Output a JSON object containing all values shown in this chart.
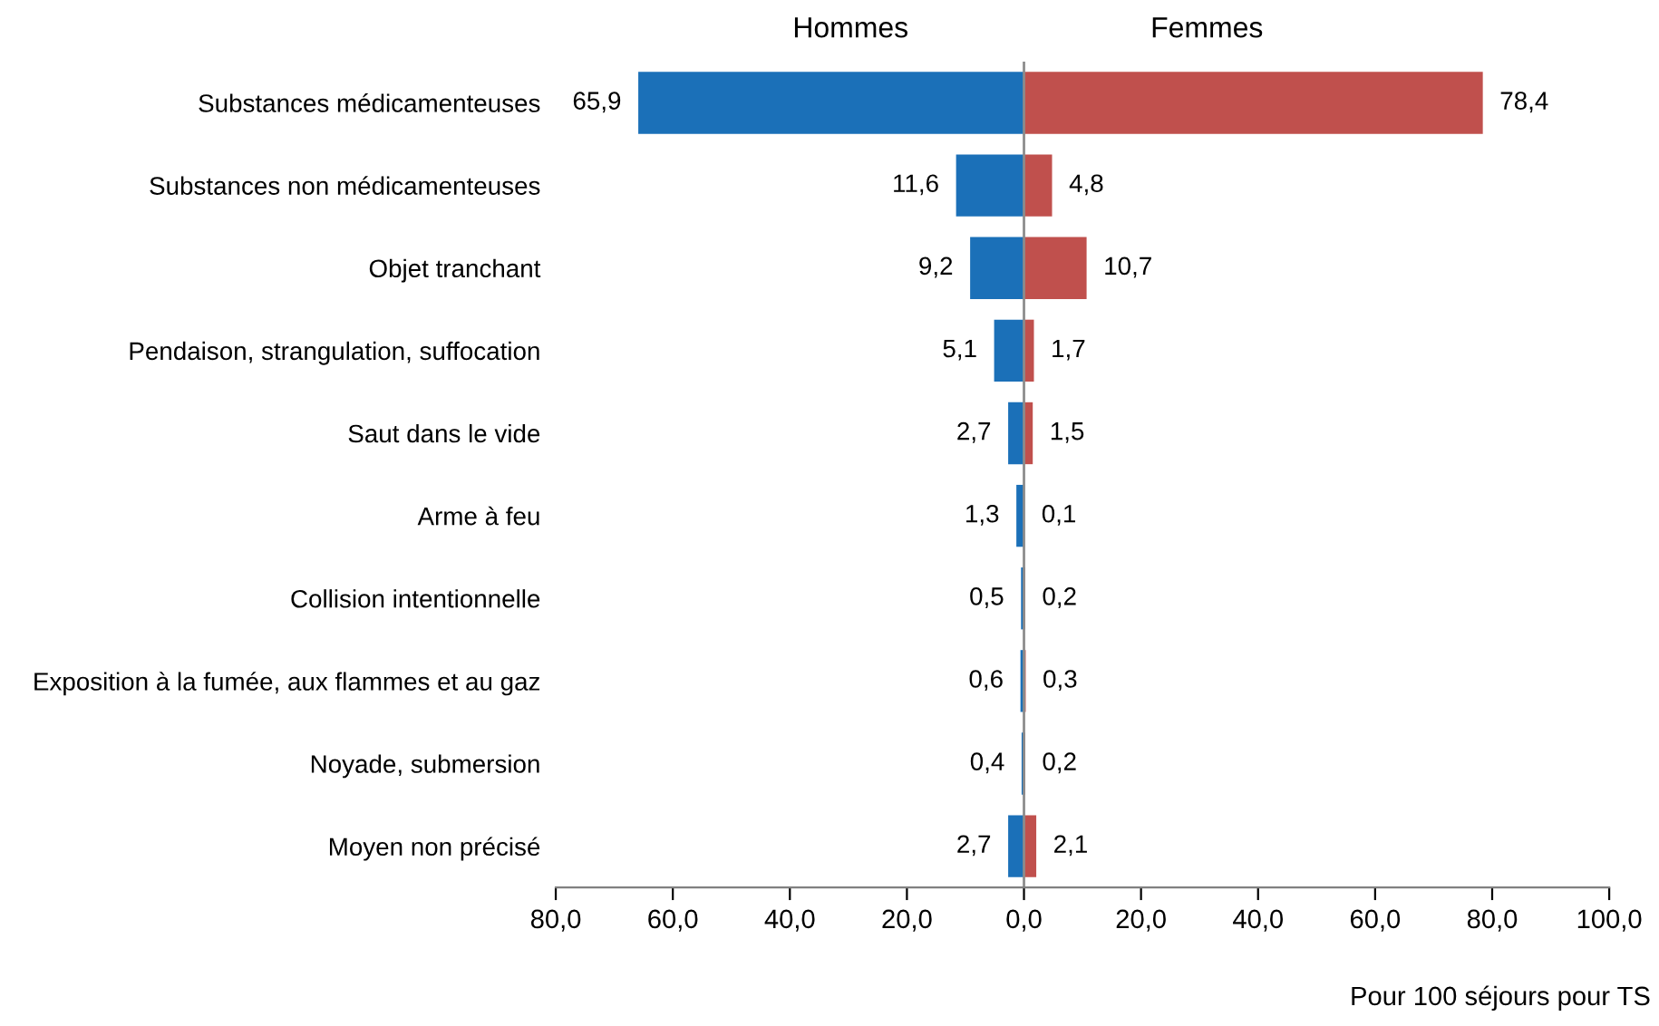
{
  "chart_data": {
    "type": "bar",
    "orientation": "horizontal",
    "xlabel": "Pour 100 séjours pour TS",
    "categories": [
      "Substances médicamenteuses",
      "Substances non médicamenteuses",
      "Objet tranchant",
      "Pendaison, strangulation, suffocation",
      "Saut dans le vide",
      "Arme à feu",
      "Collision intentionnelle",
      "Exposition à la fumée, aux flammes et au gaz",
      "Noyade, submersion",
      "Moyen non précisé"
    ],
    "series": [
      {
        "name": "Hommes",
        "color": "#1b70b8",
        "values": [
          65.9,
          11.6,
          9.2,
          5.1,
          2.7,
          1.3,
          0.5,
          0.6,
          0.4,
          2.7
        ],
        "base": [
          -65.9,
          -11.6,
          -9.2,
          -5.1,
          -2.7,
          -1.3,
          -0.5,
          -0.6,
          -0.4,
          -2.7
        ],
        "value_labels": [
          "65,9",
          "11,6",
          "9,2",
          "5,1",
          "2,7",
          "1,3",
          "0,5",
          "0,6",
          "0,4",
          "2,7"
        ]
      },
      {
        "name": "Femmes",
        "color": "#c0504d",
        "values": [
          78.4,
          4.8,
          10.7,
          1.7,
          1.5,
          0.1,
          0.2,
          0.3,
          0.2,
          2.1
        ],
        "value_labels": [
          "78,4",
          "4,8",
          "10,7",
          "1,7",
          "1,5",
          "0,1",
          "0,2",
          "0,3",
          "0,2",
          "2,1"
        ]
      }
    ],
    "xlim": [
      -80,
      100
    ],
    "xticks": [
      {
        "value": -80,
        "label": "80,0"
      },
      {
        "value": -60,
        "label": "60,0"
      },
      {
        "value": -40,
        "label": "40,0"
      },
      {
        "value": -20,
        "label": "20,0"
      },
      {
        "value": 0,
        "label": "0,0"
      },
      {
        "value": 20,
        "label": "20,0"
      },
      {
        "value": 40,
        "label": "40,0"
      },
      {
        "value": 60,
        "label": "60,0"
      },
      {
        "value": 80,
        "label": "80,0"
      },
      {
        "value": 100,
        "label": "100,0"
      }
    ],
    "ref_lines": [
      {
        "axis": "x",
        "value": 0,
        "color": "#8c8c8c"
      }
    ],
    "grid": false,
    "legend": false
  }
}
